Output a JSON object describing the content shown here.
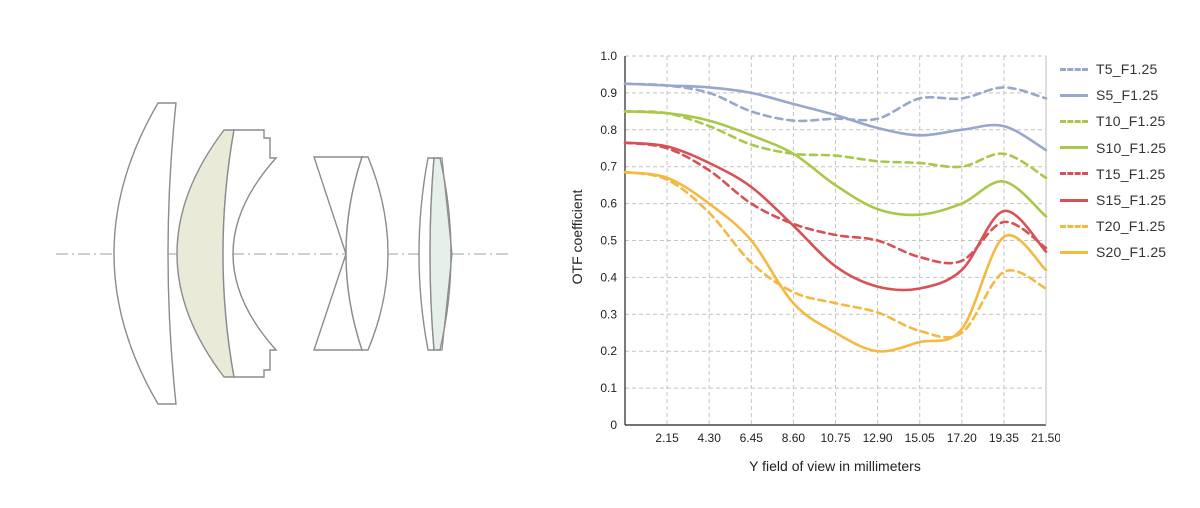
{
  "lens_diagram": {
    "optical_axis_color": "#9aa0a6",
    "element_stroke": "#8c8c8c",
    "highlight_fill": "#e9ead8",
    "highlight_fill_2": "#e6efe9"
  },
  "chart_data": {
    "type": "line",
    "xlabel": "Y field of view in millimeters",
    "ylabel": "OTF coefficient",
    "xlim": [
      0,
      21.5
    ],
    "ylim": [
      0,
      1.0
    ],
    "x_ticks": [
      "2.15",
      "4.30",
      "6.45",
      "8.60",
      "10.75",
      "12.90",
      "15.05",
      "17.20",
      "19.35",
      "21.50"
    ],
    "y_ticks": [
      "0",
      "0.1",
      "0.2",
      "0.3",
      "0.4",
      "0.5",
      "0.6",
      "0.7",
      "0.8",
      "0.9",
      "1.0"
    ],
    "grid": true,
    "legend_position": "right",
    "x": [
      0,
      2.15,
      4.3,
      6.45,
      8.6,
      10.75,
      12.9,
      15.05,
      17.2,
      19.35,
      21.5
    ],
    "series": [
      {
        "name": "T5_F1.25",
        "color": "#98a8cc",
        "dashed": true,
        "values": [
          0.925,
          0.92,
          0.9,
          0.85,
          0.825,
          0.83,
          0.83,
          0.885,
          0.885,
          0.915,
          0.885
        ]
      },
      {
        "name": "S5_F1.25",
        "color": "#98a8cc",
        "dashed": false,
        "values": [
          0.925,
          0.92,
          0.915,
          0.9,
          0.87,
          0.84,
          0.805,
          0.785,
          0.8,
          0.81,
          0.745
        ]
      },
      {
        "name": "T10_F1.25",
        "color": "#a9c84a",
        "dashed": true,
        "values": [
          0.85,
          0.845,
          0.81,
          0.76,
          0.735,
          0.73,
          0.715,
          0.71,
          0.7,
          0.735,
          0.67
        ]
      },
      {
        "name": "S10_F1.25",
        "color": "#a9c84a",
        "dashed": false,
        "values": [
          0.85,
          0.845,
          0.825,
          0.785,
          0.735,
          0.65,
          0.585,
          0.57,
          0.6,
          0.66,
          0.565
        ]
      },
      {
        "name": "T15_F1.25",
        "color": "#d85156",
        "dashed": true,
        "values": [
          0.765,
          0.75,
          0.69,
          0.6,
          0.545,
          0.515,
          0.5,
          0.455,
          0.445,
          0.55,
          0.48
        ]
      },
      {
        "name": "S15_F1.25",
        "color": "#d85156",
        "dashed": false,
        "values": [
          0.765,
          0.755,
          0.71,
          0.645,
          0.54,
          0.43,
          0.375,
          0.37,
          0.42,
          0.58,
          0.47
        ]
      },
      {
        "name": "T20_F1.25",
        "color": "#f5b942",
        "dashed": true,
        "values": [
          0.685,
          0.665,
          0.575,
          0.44,
          0.36,
          0.33,
          0.305,
          0.255,
          0.25,
          0.415,
          0.37
        ]
      },
      {
        "name": "S20_F1.25",
        "color": "#f5b942",
        "dashed": false,
        "values": [
          0.685,
          0.67,
          0.6,
          0.5,
          0.33,
          0.25,
          0.2,
          0.225,
          0.26,
          0.51,
          0.42
        ]
      }
    ]
  }
}
